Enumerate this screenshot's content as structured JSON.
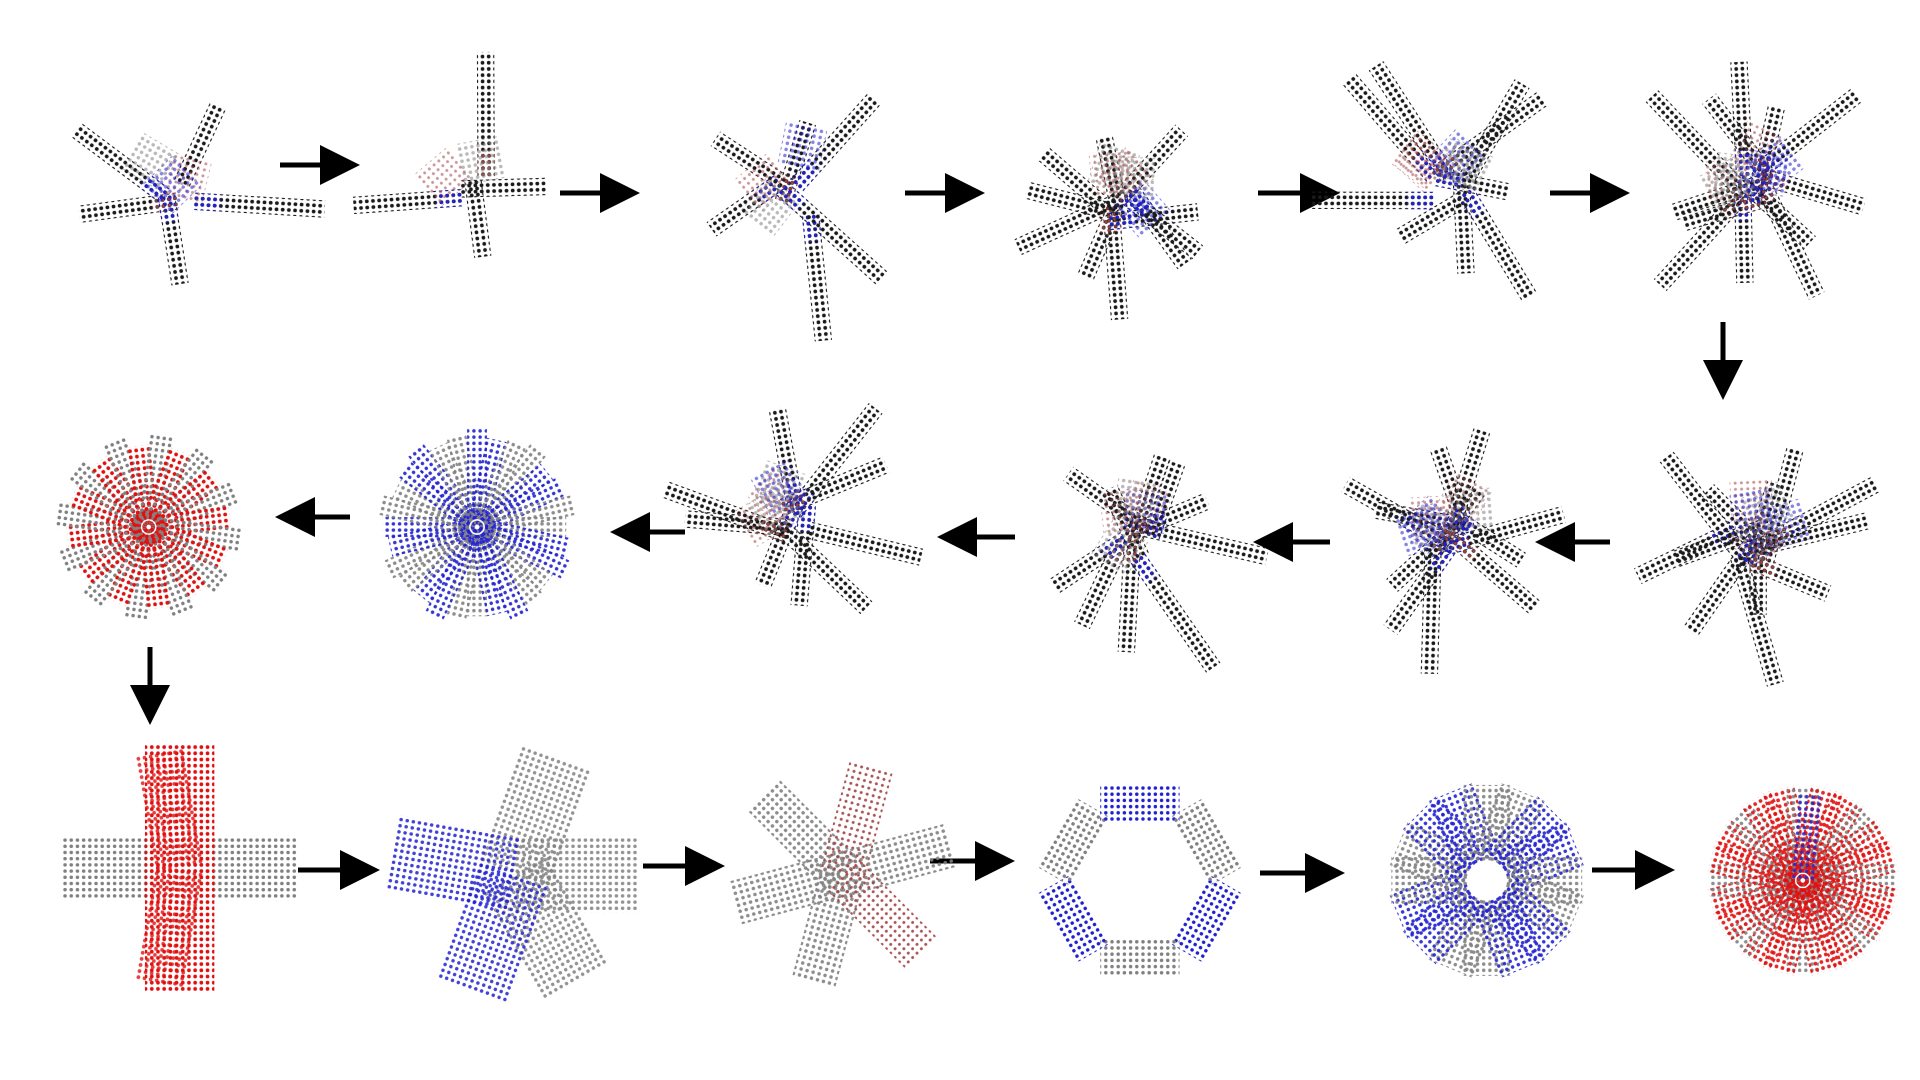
{
  "figure": {
    "description_colors": {
      "black": "#1a1a1a",
      "gray": "#808080",
      "blue": "#2020d0",
      "red": "#e01010",
      "darkred": "#a04040",
      "arrow": "#000000"
    },
    "rows": 3,
    "stages_per_row": 6,
    "flow": [
      "row1-left-to-right",
      "down",
      "row2-right-to-left",
      "down",
      "row3-left-to-right"
    ],
    "stages": [
      {
        "id": 1,
        "row": 1,
        "col": 1,
        "kind": "scattered",
        "arms": 5
      },
      {
        "id": 2,
        "row": 1,
        "col": 2,
        "kind": "scattered",
        "arms": 4
      },
      {
        "id": 3,
        "row": 1,
        "col": 3,
        "kind": "scattered",
        "arms": 6
      },
      {
        "id": 4,
        "row": 1,
        "col": 4,
        "kind": "scattered",
        "arms": 10
      },
      {
        "id": 5,
        "row": 1,
        "col": 5,
        "kind": "scattered",
        "arms": 9
      },
      {
        "id": 6,
        "row": 1,
        "col": 6,
        "kind": "scattered",
        "arms": 12
      },
      {
        "id": 7,
        "row": 2,
        "col": 6,
        "kind": "scattered",
        "arms": 12
      },
      {
        "id": 8,
        "row": 2,
        "col": 5,
        "kind": "scattered",
        "arms": 11
      },
      {
        "id": 9,
        "row": 2,
        "col": 4,
        "kind": "scattered",
        "arms": 10
      },
      {
        "id": 10,
        "row": 2,
        "col": 3,
        "kind": "scattered",
        "arms": 9
      },
      {
        "id": 11,
        "row": 2,
        "col": 2,
        "kind": "radial-disk",
        "arms": 28
      },
      {
        "id": 12,
        "row": 2,
        "col": 1,
        "kind": "star",
        "arms": 12
      },
      {
        "id": 13,
        "row": 3,
        "col": 1,
        "kind": "cross",
        "arms": 4
      },
      {
        "id": 14,
        "row": 3,
        "col": 2,
        "kind": "pinwheel",
        "arms": 5
      },
      {
        "id": 15,
        "row": 3,
        "col": 3,
        "kind": "asterisk",
        "arms": 6
      },
      {
        "id": 16,
        "row": 3,
        "col": 4,
        "kind": "hexagon-ring",
        "arms": 6
      },
      {
        "id": 17,
        "row": 3,
        "col": 5,
        "kind": "annulus",
        "arms": 16
      },
      {
        "id": 18,
        "row": 3,
        "col": 6,
        "kind": "disk",
        "arms": 24
      }
    ]
  }
}
